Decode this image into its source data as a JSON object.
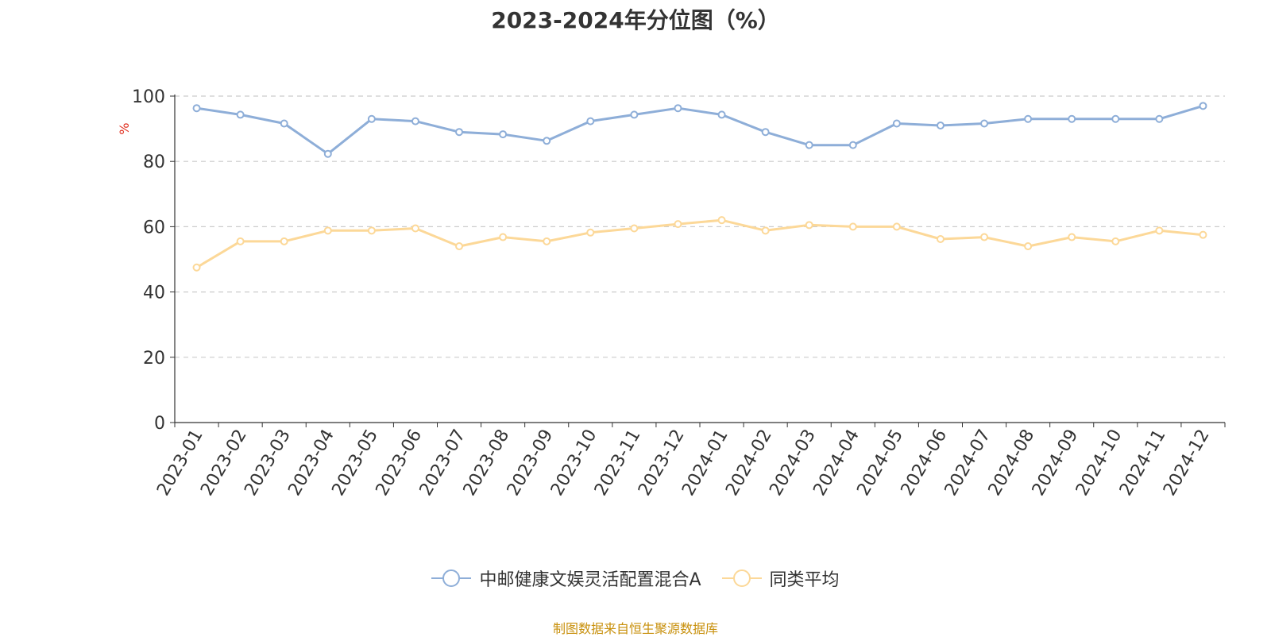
{
  "chart_data": {
    "type": "line",
    "title": "2023-2024年分位图（%）",
    "ylabel": "%",
    "ylim": [
      0,
      100
    ],
    "yticks": [
      0,
      20,
      40,
      60,
      80,
      100
    ],
    "grid": true,
    "legend_position": "bottom",
    "categories": [
      "2023-01",
      "2023-02",
      "2023-03",
      "2023-04",
      "2023-05",
      "2023-06",
      "2023-07",
      "2023-08",
      "2023-09",
      "2023-10",
      "2023-11",
      "2023-12",
      "2024-01",
      "2024-02",
      "2024-03",
      "2024-04",
      "2024-05",
      "2024-06",
      "2024-07",
      "2024-08",
      "2024-09",
      "2024-10",
      "2024-11",
      "2024-12"
    ],
    "series": [
      {
        "name": "中邮健康文娱灵活配置混合A",
        "color": "#8eaed8",
        "values": [
          96.3,
          94.3,
          91.6,
          82.3,
          93.0,
          92.3,
          89.0,
          88.3,
          86.3,
          92.3,
          94.3,
          96.3,
          94.3,
          89.0,
          85.0,
          85.0,
          91.6,
          91.0,
          91.6,
          93.0,
          93.0,
          93.0,
          93.0,
          97.0
        ]
      },
      {
        "name": "同类平均",
        "color": "#fcd898",
        "values": [
          47.5,
          55.5,
          55.5,
          58.8,
          58.8,
          59.5,
          54.0,
          56.8,
          55.5,
          58.2,
          59.5,
          60.8,
          62.0,
          58.8,
          60.5,
          60.0,
          60.0,
          56.2,
          56.8,
          54.0,
          56.8,
          55.5,
          58.8,
          57.5
        ]
      }
    ]
  },
  "source_note": "制图数据来自恒生聚源数据库"
}
